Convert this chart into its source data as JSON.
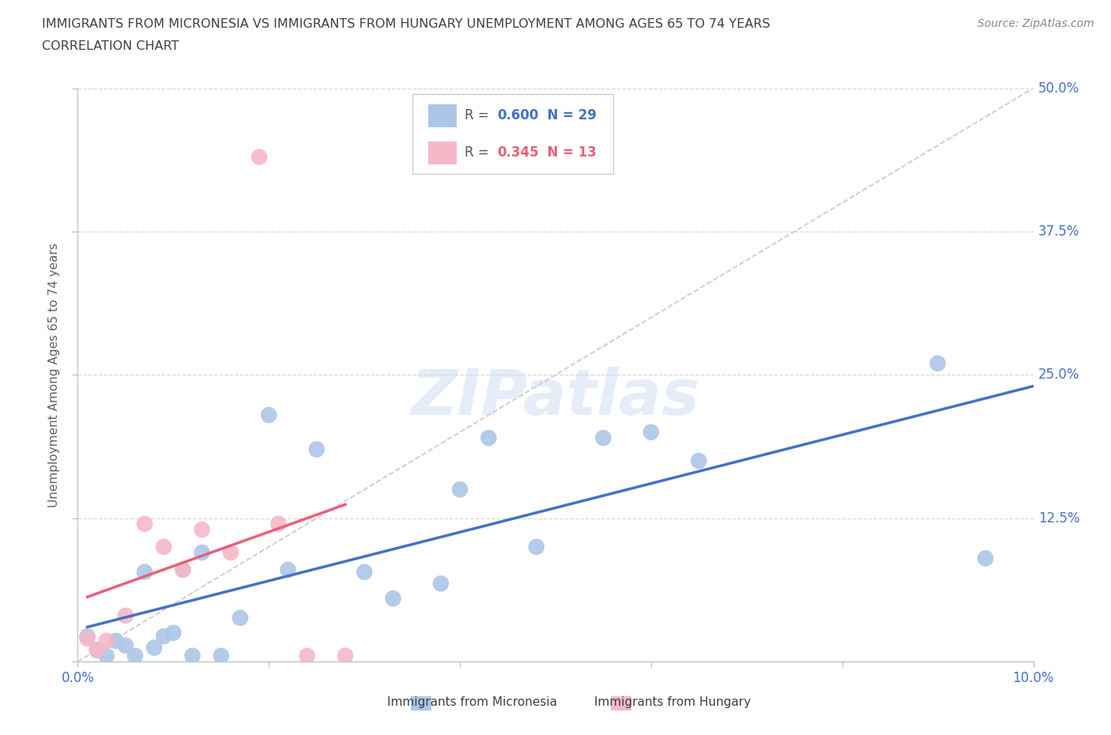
{
  "title_line1": "IMMIGRANTS FROM MICRONESIA VS IMMIGRANTS FROM HUNGARY UNEMPLOYMENT AMONG AGES 65 TO 74 YEARS",
  "title_line2": "CORRELATION CHART",
  "source": "Source: ZipAtlas.com",
  "ylabel": "Unemployment Among Ages 65 to 74 years",
  "xlim": [
    0.0,
    0.1
  ],
  "ylim": [
    0.0,
    0.5
  ],
  "xticks": [
    0.0,
    0.02,
    0.04,
    0.06,
    0.08,
    0.1
  ],
  "yticks": [
    0.0,
    0.125,
    0.25,
    0.375,
    0.5
  ],
  "ytick_labels": [
    "",
    "12.5%",
    "25.0%",
    "37.5%",
    "50.0%"
  ],
  "xtick_labels": [
    "0.0%",
    "",
    "",
    "",
    "",
    "10.0%"
  ],
  "micronesia_R": 0.6,
  "micronesia_N": 29,
  "hungary_R": 0.345,
  "hungary_N": 13,
  "micronesia_color": "#adc6e8",
  "hungary_color": "#f5b8c8",
  "micronesia_line_color": "#4472c4",
  "hungary_line_color": "#e8607a",
  "diagonal_color": "#cccccc",
  "micronesia_x": [
    0.001,
    0.002,
    0.003,
    0.004,
    0.005,
    0.006,
    0.007,
    0.008,
    0.009,
    0.01,
    0.011,
    0.012,
    0.013,
    0.015,
    0.017,
    0.02,
    0.022,
    0.025,
    0.03,
    0.033,
    0.038,
    0.04,
    0.043,
    0.048,
    0.055,
    0.06,
    0.065,
    0.09,
    0.095
  ],
  "micronesia_y": [
    0.022,
    0.01,
    0.005,
    0.018,
    0.014,
    0.005,
    0.078,
    0.012,
    0.022,
    0.025,
    0.08,
    0.005,
    0.095,
    0.005,
    0.038,
    0.215,
    0.08,
    0.185,
    0.078,
    0.055,
    0.068,
    0.15,
    0.195,
    0.1,
    0.195,
    0.2,
    0.175,
    0.26,
    0.09
  ],
  "hungary_x": [
    0.001,
    0.002,
    0.003,
    0.005,
    0.007,
    0.009,
    0.011,
    0.013,
    0.016,
    0.019,
    0.021,
    0.024,
    0.028
  ],
  "hungary_y": [
    0.02,
    0.01,
    0.018,
    0.04,
    0.12,
    0.1,
    0.08,
    0.115,
    0.095,
    0.44,
    0.12,
    0.005,
    0.005
  ],
  "watermark_text": "ZIPatlas",
  "background_color": "#ffffff",
  "grid_color": "#d8d8d8",
  "title_color": "#404040",
  "axis_label_color": "#606060",
  "tick_label_color": "#4472c4",
  "source_color": "#888888",
  "legend_box_color": "#cccccc",
  "legend_R_color_micro": "#4472c4",
  "legend_R_color_hungary": "#e8607a",
  "bottom_legend_color": "#404040"
}
